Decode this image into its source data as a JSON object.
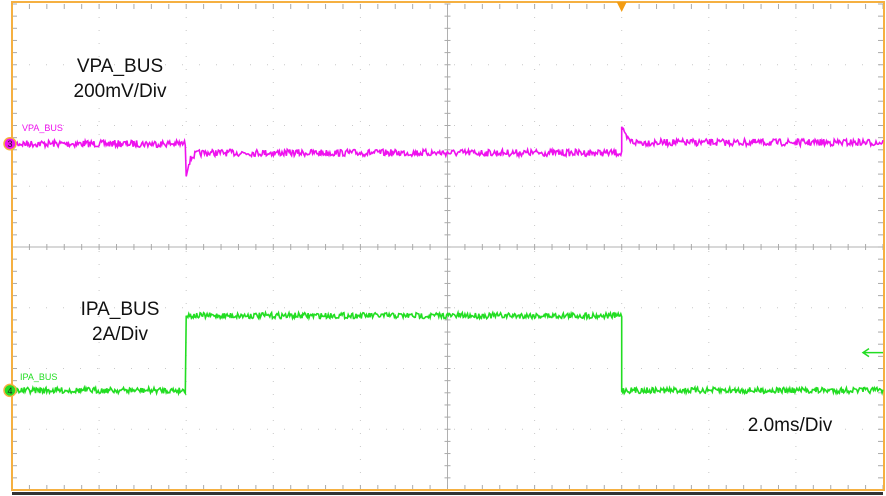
{
  "chart_data": {
    "type": "line",
    "xlim_ms": [
      0,
      20
    ],
    "ylim_div": [
      -4,
      4
    ],
    "grid": true,
    "timebase": "2.0ms/Div",
    "trigger_marker_ms": 14,
    "series": [
      {
        "name": "VPA_BUS",
        "channel": "3",
        "color": "#ee11ee",
        "label": "VPA_BUS",
        "scale": "200mV/Div",
        "segments": [
          {
            "t_ms": [
              0,
              4
            ],
            "level_div": 1.7
          },
          {
            "t_ms": [
              4,
              14
            ],
            "level_div": 1.55
          },
          {
            "t_ms": [
              14,
              20
            ],
            "level_div": 1.72
          }
        ],
        "transients": [
          {
            "t_ms": 4,
            "peak_div": 1.2
          },
          {
            "t_ms": 14,
            "peak_div": 2.0
          }
        ]
      },
      {
        "name": "IPA_BUS",
        "channel": "4",
        "color": "#22dd22",
        "label": "IPA_BUS",
        "scale": "2A/Div",
        "segments": [
          {
            "t_ms": [
              0,
              4
            ],
            "level_div": -2.36
          },
          {
            "t_ms": [
              4,
              14
            ],
            "level_div": -1.13
          },
          {
            "t_ms": [
              14,
              20
            ],
            "level_div": -2.36
          }
        ]
      }
    ]
  }
}
